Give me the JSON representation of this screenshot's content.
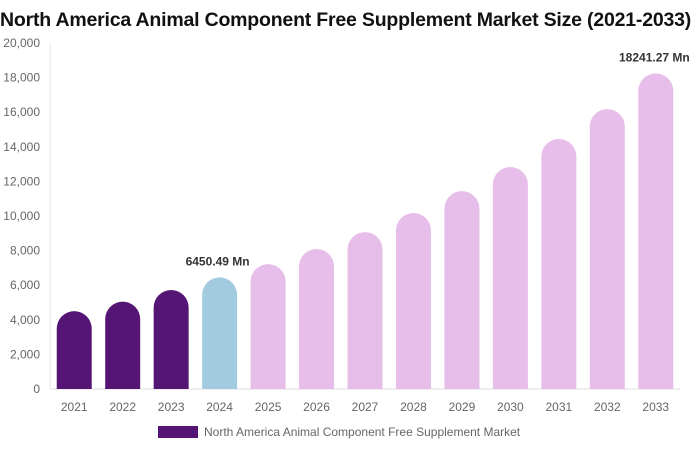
{
  "chart_data": {
    "type": "bar",
    "title": "North America Animal Component Free Supplement Market Size (2021-2033)",
    "categories": [
      "2021",
      "2022",
      "2023",
      "2024",
      "2025",
      "2026",
      "2027",
      "2028",
      "2029",
      "2030",
      "2031",
      "2032",
      "2033"
    ],
    "series": [
      {
        "name": "North America Animal Component Free Supplement Market",
        "values": [
          4500,
          5050,
          5720,
          6450.49,
          7220,
          8090,
          9070,
          10170,
          11440,
          12830,
          14450,
          16180,
          18241.27
        ]
      }
    ],
    "data_labels": {
      "3": "6450.49 Mn",
      "12": "18241.27 Mn"
    },
    "ylim": [
      0,
      20000
    ],
    "yticks": [
      "0",
      "2,000",
      "4,000",
      "6,000",
      "8,000",
      "10,000",
      "12,000",
      "14,000",
      "16,000",
      "18,000",
      "20,000"
    ],
    "xlabel": "",
    "ylabel": "",
    "grid": false,
    "legend": "bottom",
    "colors": {
      "historical": "#541574",
      "base_year": "#a3cbe0",
      "forecast": "#e7bde9"
    }
  }
}
